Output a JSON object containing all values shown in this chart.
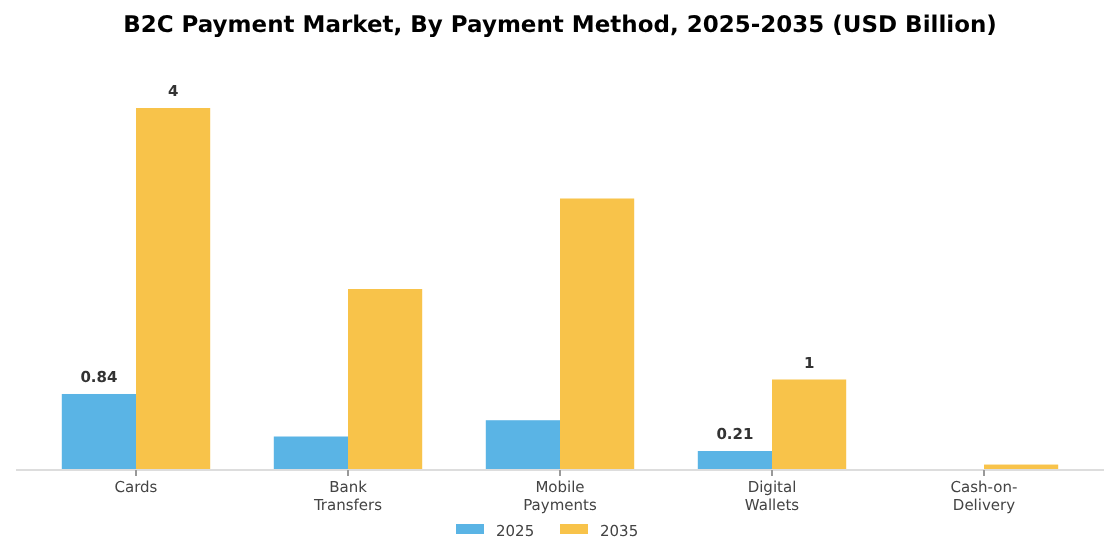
{
  "chart_data": {
    "type": "bar",
    "title": "B2C Payment Market, By Payment Method, 2025-2035 (USD Billion)",
    "categories": [
      "Cards",
      "Bank\nTransfers",
      "Mobile\nPayments",
      "Digital\nWallets",
      "Cash-on-\nDelivery"
    ],
    "series": [
      {
        "name": "2025",
        "color": "#5ab4e5",
        "values": [
          0.84,
          0.37,
          0.55,
          0.21,
          0
        ],
        "value_labels": [
          "0.84",
          null,
          null,
          "0.21",
          null
        ]
      },
      {
        "name": "2035",
        "color": "#f8c34a",
        "values": [
          4,
          2.0,
          3.0,
          1,
          0.06
        ],
        "value_labels": [
          "4",
          null,
          null,
          "1",
          null
        ]
      }
    ],
    "legend": "bottom"
  }
}
